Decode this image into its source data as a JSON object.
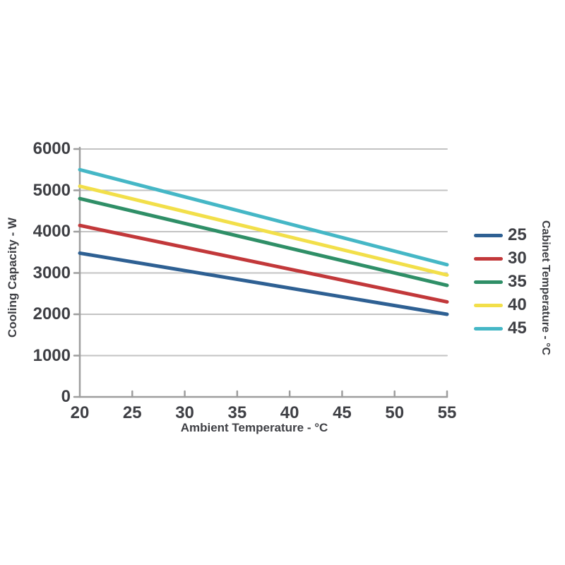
{
  "figure": {
    "background": "#ffffff"
  },
  "chart_data": {
    "type": "line",
    "title": "",
    "xlabel": "Ambient Temperature - °C",
    "ylabel": "Cooling Capacity - W",
    "legend_title": "Cabinet Temperature - °C",
    "legend_position": "right",
    "grid": "horizontal gridlines every 1000 W",
    "xlim": [
      20,
      55
    ],
    "ylim": [
      0,
      6000
    ],
    "x_ticks": [
      20,
      25,
      30,
      35,
      40,
      45,
      50,
      55
    ],
    "y_ticks": [
      0,
      1000,
      2000,
      3000,
      4000,
      5000,
      6000
    ],
    "x": [
      20,
      55
    ],
    "series": [
      {
        "name": "25",
        "color": "#2e6093",
        "values": [
          3480,
          2000
        ]
      },
      {
        "name": "30",
        "color": "#c2383a",
        "values": [
          4150,
          2300
        ]
      },
      {
        "name": "35",
        "color": "#2f8f67",
        "values": [
          4800,
          2700
        ]
      },
      {
        "name": "40",
        "color": "#f2df4a",
        "values": [
          5100,
          2950
        ]
      },
      {
        "name": "45",
        "color": "#45b7c6",
        "values": [
          5500,
          3200
        ]
      }
    ],
    "axis_color": "#9e9e9e",
    "grid_color": "#c3c3c3",
    "text_color": "#3f4045",
    "line_width": 5
  }
}
